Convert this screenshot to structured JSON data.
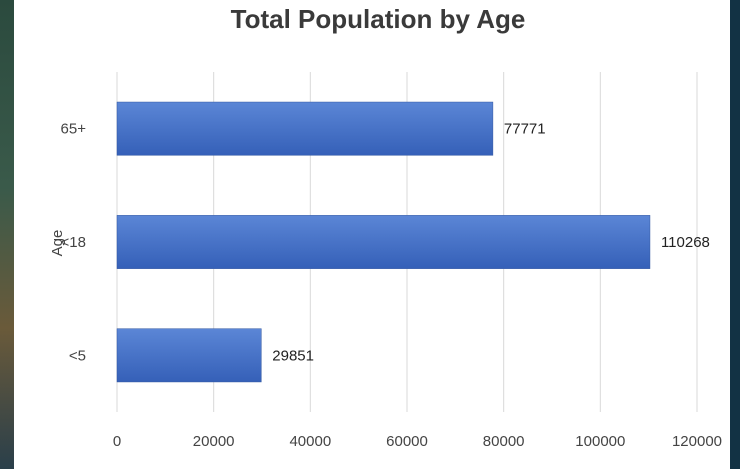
{
  "chart_data": {
    "type": "bar",
    "orientation": "horizontal",
    "title": "Total Population by Age",
    "ylabel": "Age",
    "xlabel": "",
    "categories": [
      "65+",
      "<18",
      "<5"
    ],
    "values": [
      77771,
      110268,
      29851
    ],
    "data_labels": [
      "77771",
      "110268",
      "29851"
    ],
    "xlim": [
      0,
      120000
    ],
    "x_ticks": [
      0,
      20000,
      40000,
      60000,
      80000,
      100000,
      120000
    ],
    "x_tick_labels": [
      "0",
      "20000",
      "40000",
      "60000",
      "80000",
      "100000",
      "120000"
    ],
    "grid": "vertical",
    "bar_color": "#4472c4"
  }
}
